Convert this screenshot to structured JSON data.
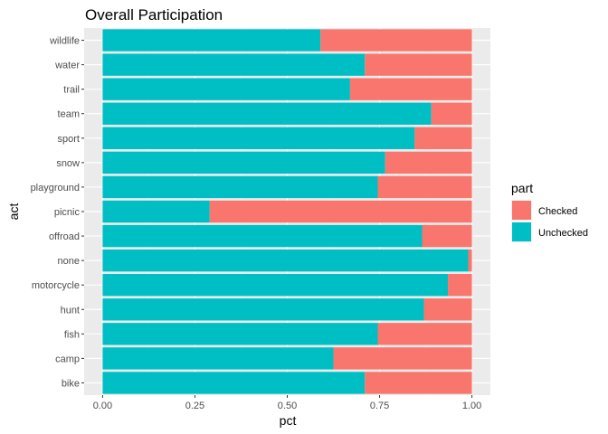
{
  "chart_data": {
    "type": "bar",
    "orientation": "horizontal",
    "stacked": true,
    "title": "Overall Participation",
    "xlabel": "pct",
    "ylabel": "act",
    "xlim": [
      0,
      1
    ],
    "x_ticks": [
      "0.00",
      "0.25",
      "0.50",
      "0.75",
      "1.00"
    ],
    "grid": true,
    "legend": {
      "title": "part",
      "position": "right"
    },
    "categories": [
      "wildlife",
      "water",
      "trail",
      "team",
      "sport",
      "snow",
      "playground",
      "picnic",
      "offroad",
      "none",
      "motorcycle",
      "hunt",
      "fish",
      "camp",
      "bike"
    ],
    "series": [
      {
        "name": "Unchecked",
        "color": "#00BFC4",
        "values": [
          0.59,
          0.71,
          0.67,
          0.89,
          0.845,
          0.765,
          0.745,
          0.29,
          0.865,
          0.99,
          0.935,
          0.87,
          0.745,
          0.625,
          0.71
        ]
      },
      {
        "name": "Checked",
        "color": "#F8766D",
        "values": [
          0.41,
          0.29,
          0.33,
          0.11,
          0.155,
          0.235,
          0.255,
          0.71,
          0.135,
          0.01,
          0.065,
          0.13,
          0.255,
          0.375,
          0.29
        ]
      }
    ]
  }
}
